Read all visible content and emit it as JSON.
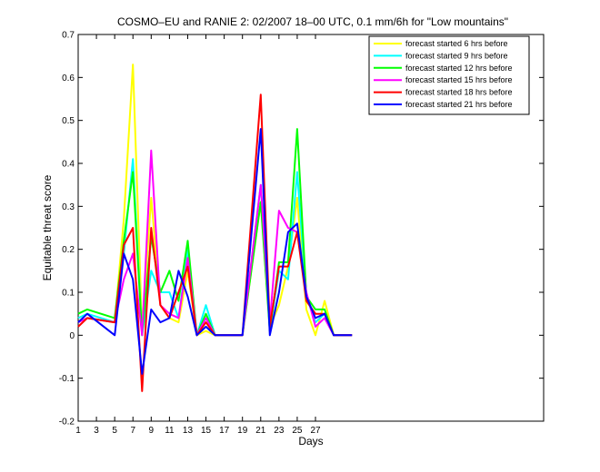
{
  "chart_data": {
    "type": "line",
    "title": "COSMO–EU and RANIE 2: 02/2007 18–00 UTC, 0.1 mm/6h for \"Low mountains\"",
    "xlabel": "Days",
    "ylabel": "Equitable threat score",
    "xlim": [
      1,
      52
    ],
    "ylim": [
      -0.2,
      0.7
    ],
    "xticks": [
      1,
      3,
      5,
      7,
      9,
      11,
      13,
      15,
      17,
      19,
      21,
      23,
      25,
      27
    ],
    "yticks": [
      -0.2,
      -0.1,
      0,
      0.1,
      0.2,
      0.3,
      0.4,
      0.5,
      0.6,
      0.7
    ],
    "grid": false,
    "legend_position": "top-right",
    "series": [
      {
        "name": "forecast started 6 hrs before",
        "color": "#ffff00",
        "x": [
          1,
          2,
          5,
          6,
          7,
          8,
          9,
          10,
          11,
          12,
          13,
          14,
          15,
          16,
          18,
          19,
          21,
          22,
          23,
          24,
          25,
          26,
          27,
          28,
          29,
          30,
          31
        ],
        "y": [
          0.03,
          0.04,
          0.03,
          0.27,
          0.63,
          0.01,
          0.32,
          0.07,
          0.04,
          0.03,
          0.15,
          0.0,
          0.01,
          0.0,
          0.0,
          0.0,
          0.31,
          0.02,
          0.07,
          0.16,
          0.32,
          0.06,
          0.0,
          0.08,
          0.0,
          0.0,
          0.0
        ]
      },
      {
        "name": "forecast started 9 hrs before",
        "color": "#00ffff",
        "x": [
          1,
          2,
          5,
          6,
          7,
          8,
          9,
          10,
          11,
          12,
          13,
          14,
          15,
          16,
          18,
          19,
          21,
          22,
          23,
          24,
          25,
          26,
          27,
          28,
          29,
          30,
          31
        ],
        "y": [
          0.04,
          0.05,
          0.03,
          0.19,
          0.41,
          0.0,
          0.15,
          0.1,
          0.1,
          0.04,
          0.2,
          0.0,
          0.07,
          0.0,
          0.0,
          0.0,
          0.35,
          0.01,
          0.15,
          0.13,
          0.38,
          0.09,
          0.03,
          0.05,
          0.0,
          0.0,
          0.0
        ]
      },
      {
        "name": "forecast started 12 hrs before",
        "color": "#00ff00",
        "x": [
          1,
          2,
          5,
          6,
          7,
          8,
          9,
          10,
          11,
          12,
          13,
          14,
          15,
          16,
          18,
          19,
          21,
          22,
          23,
          24,
          25,
          26,
          27,
          28,
          29,
          30,
          31
        ],
        "y": [
          0.05,
          0.06,
          0.04,
          0.22,
          0.38,
          0.0,
          0.23,
          0.1,
          0.15,
          0.08,
          0.22,
          0.0,
          0.05,
          0.0,
          0.0,
          0.0,
          0.31,
          0.01,
          0.17,
          0.17,
          0.48,
          0.09,
          0.06,
          0.06,
          0.0,
          0.0,
          0.0
        ]
      },
      {
        "name": "forecast started 15 hrs before",
        "color": "#ff00ff",
        "x": [
          1,
          2,
          5,
          6,
          7,
          8,
          9,
          10,
          11,
          12,
          13,
          14,
          15,
          16,
          18,
          19,
          21,
          22,
          23,
          24,
          25,
          26,
          27,
          28,
          29,
          30,
          31
        ],
        "y": [
          0.03,
          0.04,
          0.03,
          0.13,
          0.19,
          0.0,
          0.43,
          0.07,
          0.05,
          0.04,
          0.18,
          0.0,
          0.04,
          0.0,
          0.0,
          0.0,
          0.35,
          0.03,
          0.29,
          0.25,
          0.24,
          0.1,
          0.02,
          0.04,
          0.0,
          0.0,
          0.0
        ]
      },
      {
        "name": "forecast started 18 hrs before",
        "color": "#ff0000",
        "x": [
          1,
          2,
          5,
          6,
          7,
          8,
          9,
          10,
          11,
          12,
          13,
          14,
          15,
          16,
          18,
          19,
          21,
          22,
          23,
          24,
          25,
          26,
          27,
          28,
          29,
          30,
          31
        ],
        "y": [
          0.02,
          0.04,
          0.03,
          0.21,
          0.25,
          -0.13,
          0.25,
          0.07,
          0.04,
          0.1,
          0.16,
          0.0,
          0.03,
          0.0,
          0.0,
          0.0,
          0.56,
          0.02,
          0.16,
          0.16,
          0.24,
          0.08,
          0.05,
          0.05,
          0.0,
          0.0,
          0.0
        ]
      },
      {
        "name": "forecast started 21 hrs before",
        "color": "#0000ff",
        "x": [
          1,
          2,
          5,
          6,
          7,
          8,
          9,
          10,
          11,
          12,
          13,
          14,
          15,
          16,
          18,
          19,
          21,
          22,
          23,
          24,
          25,
          26,
          27,
          28,
          29,
          30,
          31
        ],
        "y": [
          0.03,
          0.05,
          0.0,
          0.19,
          0.13,
          -0.09,
          0.06,
          0.03,
          0.04,
          0.15,
          0.09,
          0.0,
          0.02,
          0.0,
          0.0,
          0.0,
          0.48,
          0.0,
          0.1,
          0.24,
          0.26,
          0.09,
          0.04,
          0.05,
          0.0,
          0.0,
          0.0
        ]
      }
    ]
  }
}
